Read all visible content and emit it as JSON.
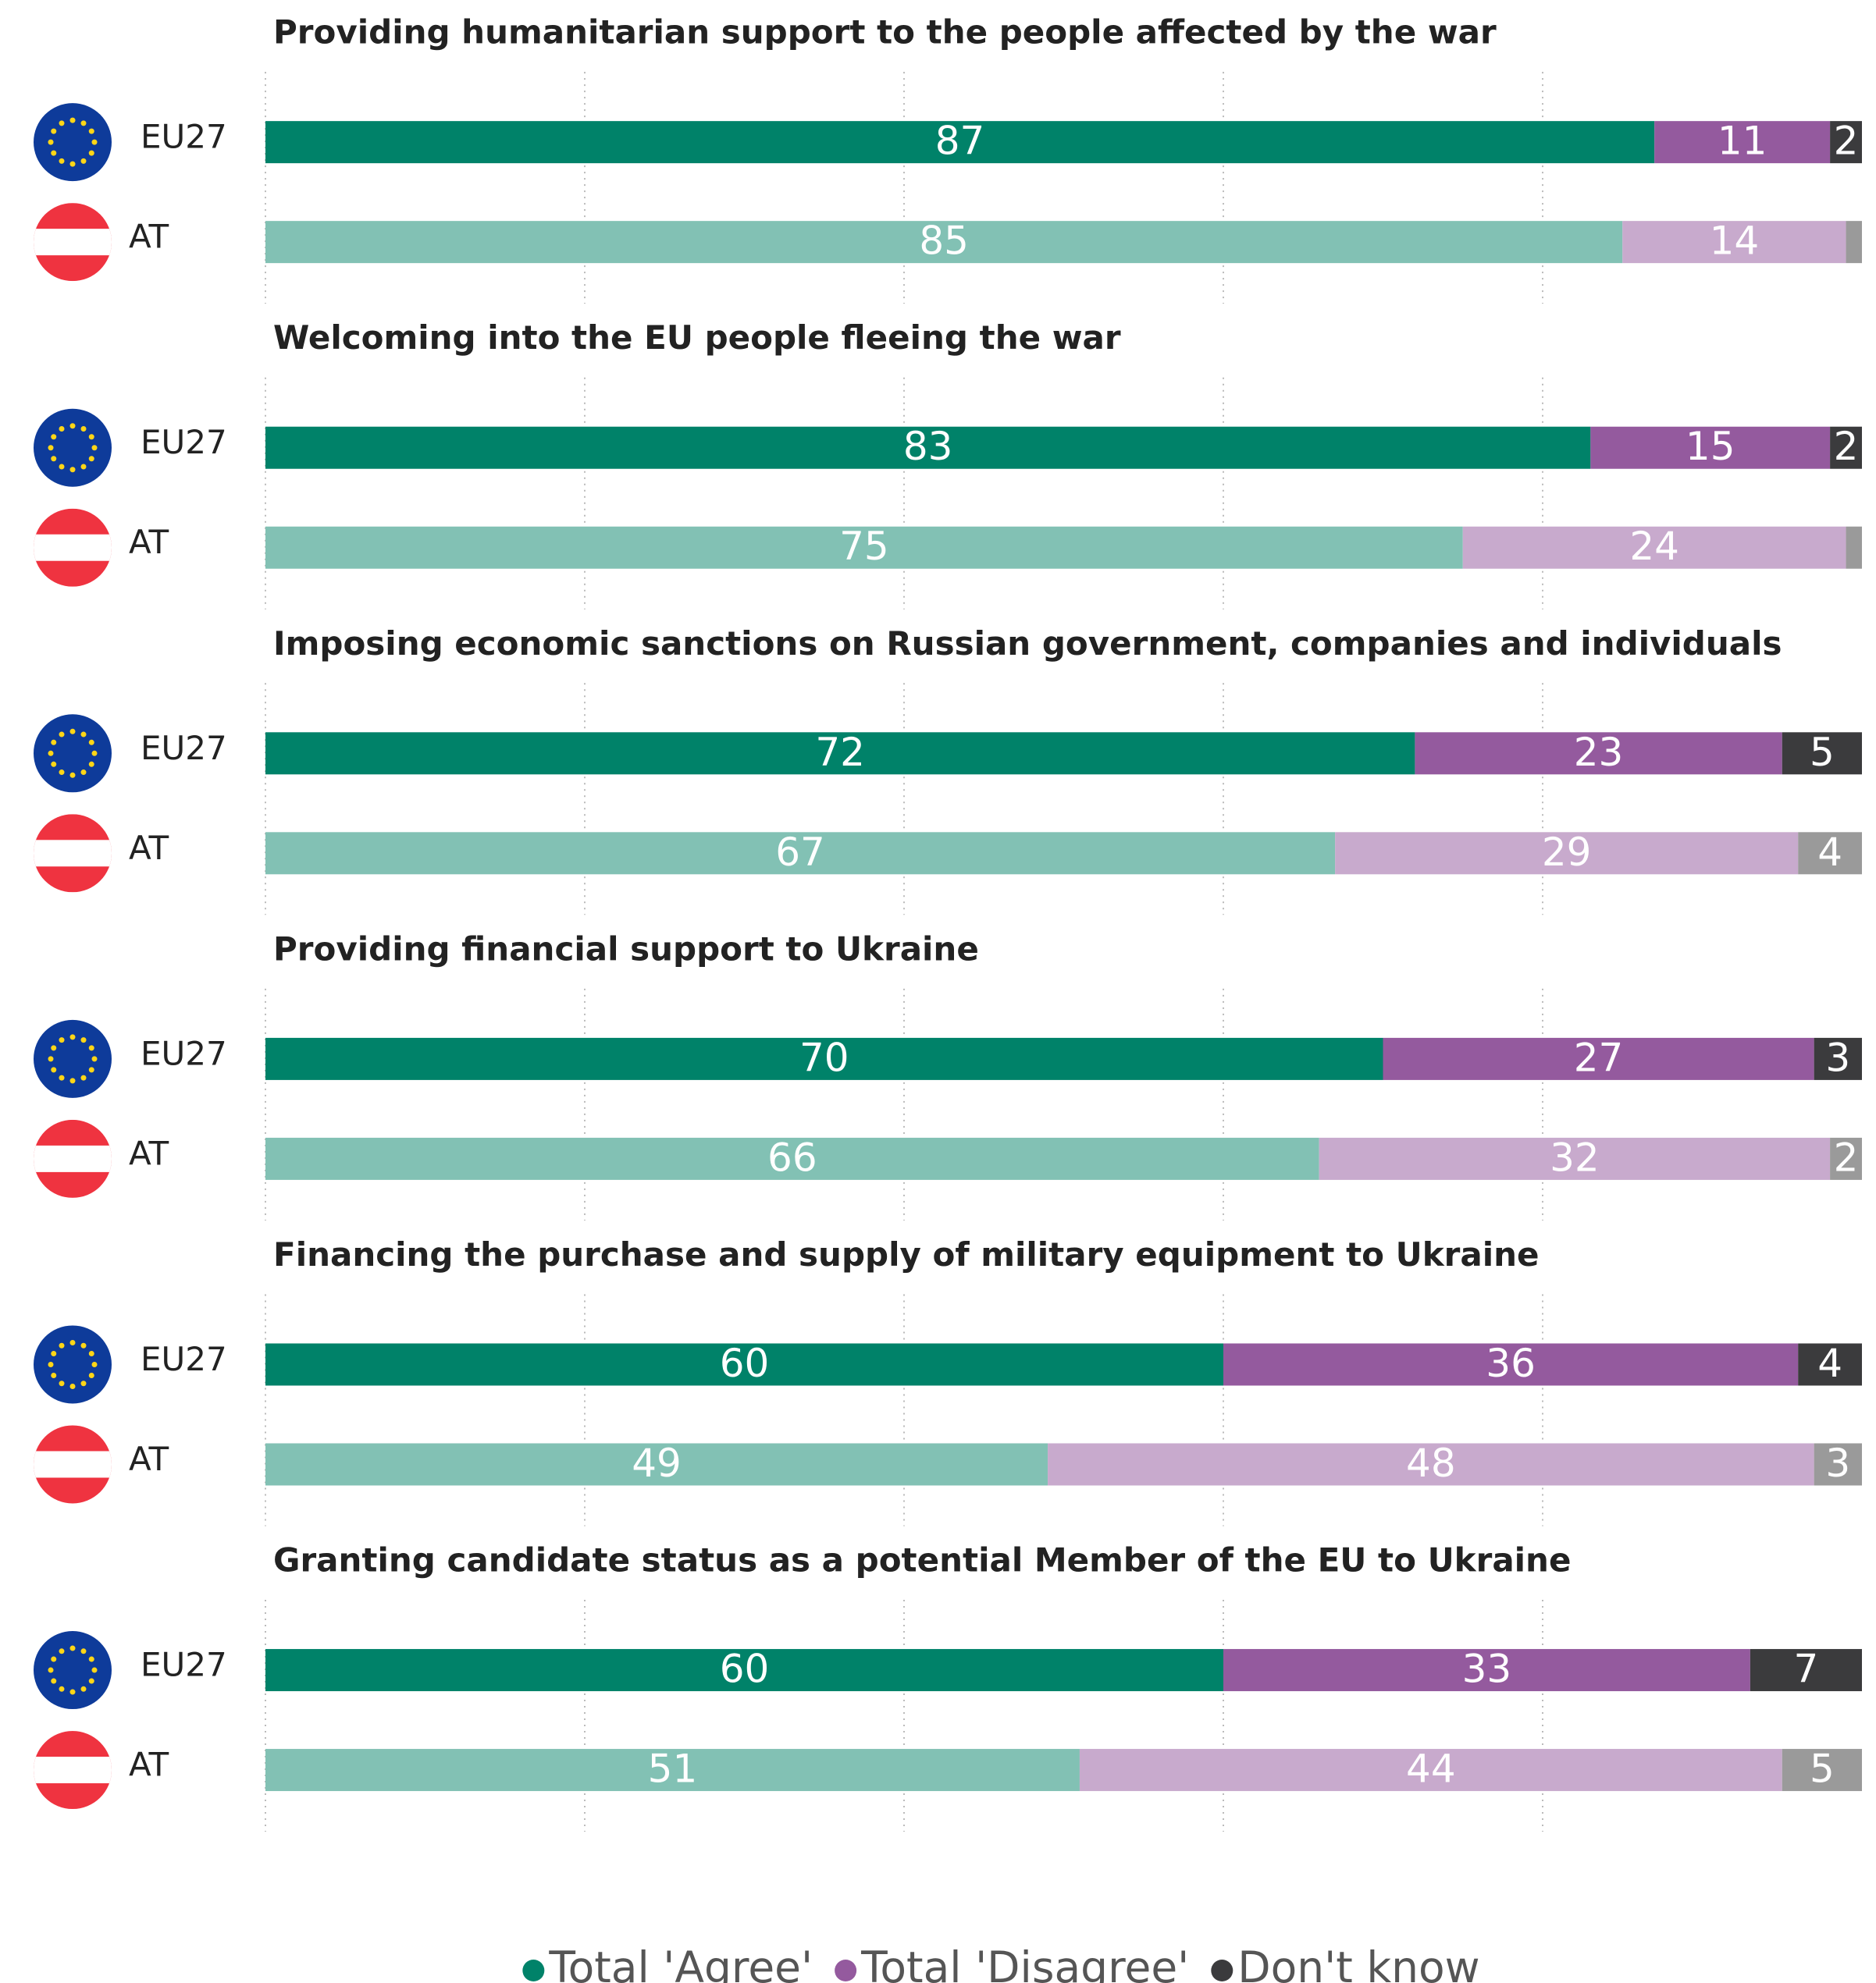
{
  "chart_data": {
    "type": "bar",
    "orientation": "horizontal",
    "stacked": true,
    "xlim": [
      0,
      100
    ],
    "xticks": [
      0,
      20,
      40,
      60,
      80
    ],
    "grid": true,
    "categories": [
      "EU27",
      "AT"
    ],
    "series": [
      {
        "name": "Total 'Agree'",
        "colors": [
          "#008269",
          "#82c1b4"
        ]
      },
      {
        "name": "Total 'Disagree'",
        "colors": [
          "#945a9e",
          "#c8aacd"
        ]
      },
      {
        "name": "Don't know",
        "colors": [
          "#3b3b3d",
          "#9a9a9a"
        ]
      }
    ],
    "panels": [
      {
        "title": "Providing humanitarian support to the people affected by the war",
        "series": [
          {
            "values": [
              87,
              85
            ]
          },
          {
            "values": [
              11,
              14
            ]
          },
          {
            "values": [
              2,
              1
            ],
            "value_labels": [
              "2",
              null
            ]
          }
        ]
      },
      {
        "title": "Welcoming into the EU people fleeing the war",
        "series": [
          {
            "values": [
              83,
              75
            ]
          },
          {
            "values": [
              15,
              24
            ]
          },
          {
            "values": [
              2,
              1
            ],
            "value_labels": [
              "2",
              null
            ]
          }
        ]
      },
      {
        "title": "Imposing economic sanctions on Russian government, companies and individuals",
        "series": [
          {
            "values": [
              72,
              67
            ]
          },
          {
            "values": [
              23,
              29
            ]
          },
          {
            "values": [
              5,
              4
            ]
          }
        ]
      },
      {
        "title": "Providing financial support to Ukraine",
        "series": [
          {
            "values": [
              70,
              66
            ]
          },
          {
            "values": [
              27,
              32
            ]
          },
          {
            "values": [
              3,
              2
            ]
          }
        ]
      },
      {
        "title": "Financing the purchase and supply of military equipment to Ukraine",
        "series": [
          {
            "values": [
              60,
              49
            ]
          },
          {
            "values": [
              36,
              48
            ]
          },
          {
            "values": [
              4,
              3
            ]
          }
        ]
      },
      {
        "title": "Granting candidate status as a potential Member of the EU to Ukraine",
        "series": [
          {
            "values": [
              60,
              51
            ]
          },
          {
            "values": [
              33,
              44
            ]
          },
          {
            "values": [
              7,
              5
            ]
          }
        ]
      }
    ]
  }
}
